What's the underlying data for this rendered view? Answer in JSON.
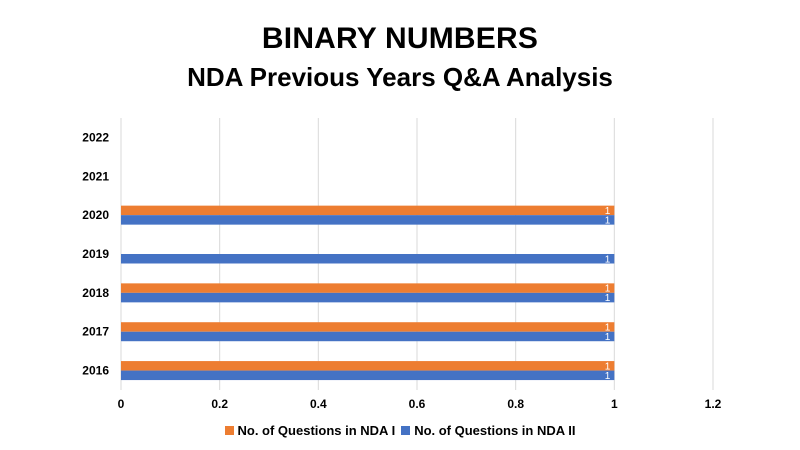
{
  "chart_data": {
    "type": "bar",
    "orientation": "horizontal",
    "title": "BINARY NUMBERS",
    "subtitle": "NDA Previous Years Q&A Analysis",
    "categories": [
      "2016",
      "2017",
      "2018",
      "2019",
      "2020",
      "2021",
      "2022"
    ],
    "series": [
      {
        "name": "No. of Questions in NDA I",
        "color": "#ED7D31",
        "values": [
          1,
          1,
          1,
          null,
          1,
          null,
          null
        ]
      },
      {
        "name": "No. of Questions in NDA II",
        "color": "#4472C4",
        "values": [
          1,
          1,
          1,
          1,
          1,
          null,
          null
        ]
      }
    ],
    "xlim": [
      0,
      1.2
    ],
    "xticks": [
      "0",
      "0.2",
      "0.4",
      "0.6",
      "0.8",
      "1",
      "1.2"
    ],
    "grid": true,
    "data_labels": true,
    "legend_position": "bottom"
  }
}
